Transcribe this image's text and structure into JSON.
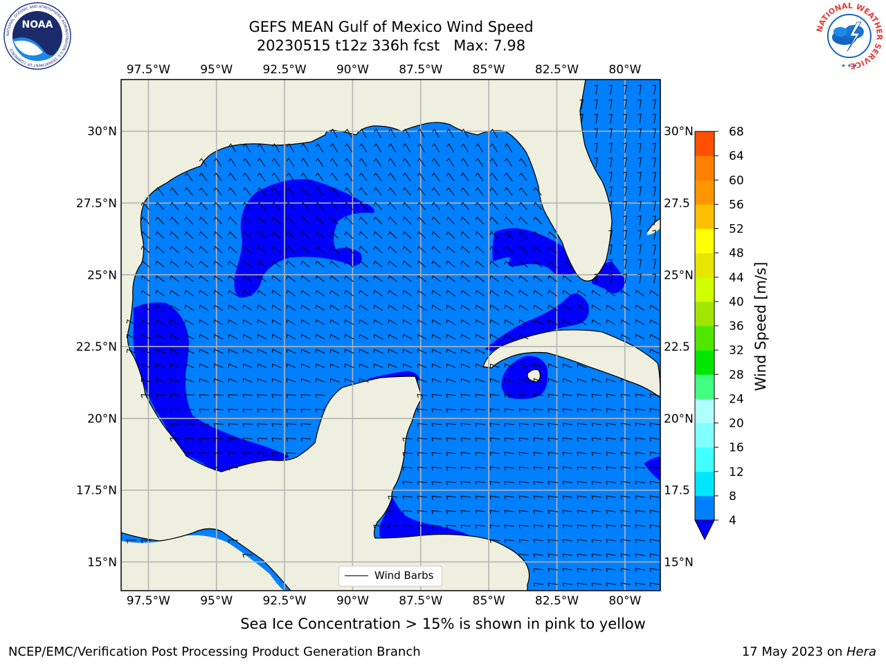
{
  "title": {
    "line1": "GEFS MEAN Gulf of Mexico Wind Speed",
    "line2": "20230515 t12z 336h fcst   Max: 7.98"
  },
  "logos": {
    "left": {
      "name": "noaa-logo",
      "text": "NOAA",
      "ring_text": "NATIONAL OCEANIC AND ATMOSPHERIC ADMINISTRATION  U.S. DEPARTMENT OF COMMERCE"
    },
    "right": {
      "name": "nws-logo",
      "ring_text": "NATIONAL WEATHER SERVICE"
    }
  },
  "map": {
    "lon_range": [
      -98.5,
      -78.7
    ],
    "lat_range": [
      14.0,
      31.8
    ],
    "lon_ticks": [
      {
        "value": -97.5,
        "label": "97.5°W"
      },
      {
        "value": -95,
        "label": "95°W"
      },
      {
        "value": -92.5,
        "label": "92.5°W"
      },
      {
        "value": -90,
        "label": "90°W"
      },
      {
        "value": -87.5,
        "label": "87.5°W"
      },
      {
        "value": -85,
        "label": "85°W"
      },
      {
        "value": -82.5,
        "label": "82.5°W"
      },
      {
        "value": -80,
        "label": "80°W"
      }
    ],
    "lat_ticks": [
      {
        "value": 30,
        "label": "30°N",
        "right_label": "30°N"
      },
      {
        "value": 27.5,
        "label": "27.5°N",
        "right_label": "27.5"
      },
      {
        "value": 25,
        "label": "25°N",
        "right_label": "25°N"
      },
      {
        "value": 22.5,
        "label": "22.5°N",
        "right_label": "22.5"
      },
      {
        "value": 20,
        "label": "20°N",
        "right_label": "20°N"
      },
      {
        "value": 17.5,
        "label": "17.5°N",
        "right_label": "17.5"
      },
      {
        "value": 15,
        "label": "15°N",
        "right_label": "15°N"
      }
    ],
    "land_color": "#efefdf",
    "ocean_4_8_color": "#0080ff",
    "ocean_below_4_color": "#0000ff",
    "grid": true,
    "legend_label": "Wind Barbs"
  },
  "colorbar": {
    "label": "Wind Speed [m/s]",
    "levels": [
      4,
      8,
      12,
      16,
      20,
      24,
      28,
      32,
      36,
      40,
      44,
      48,
      52,
      56,
      60,
      64,
      68
    ],
    "colors": [
      "#0080ff",
      "#00e6ff",
      "#40ffff",
      "#80ffff",
      "#b0ffff",
      "#40ff80",
      "#00e600",
      "#50e600",
      "#a0e600",
      "#d0ff00",
      "#e6e600",
      "#ffff00",
      "#ffc000",
      "#ff9600",
      "#ff8000",
      "#ff5000",
      "#ff3000",
      "#ff0000"
    ],
    "under_color": "#0000ff",
    "extend": "min"
  },
  "subtitle": "Sea Ice Concentration > 15% is shown in pink to yellow",
  "footer": {
    "left": "NCEP/EMC/Verification Post Processing Product Generation Branch",
    "right_prefix": "17 May 2023 on ",
    "right_italic": "Hera"
  }
}
